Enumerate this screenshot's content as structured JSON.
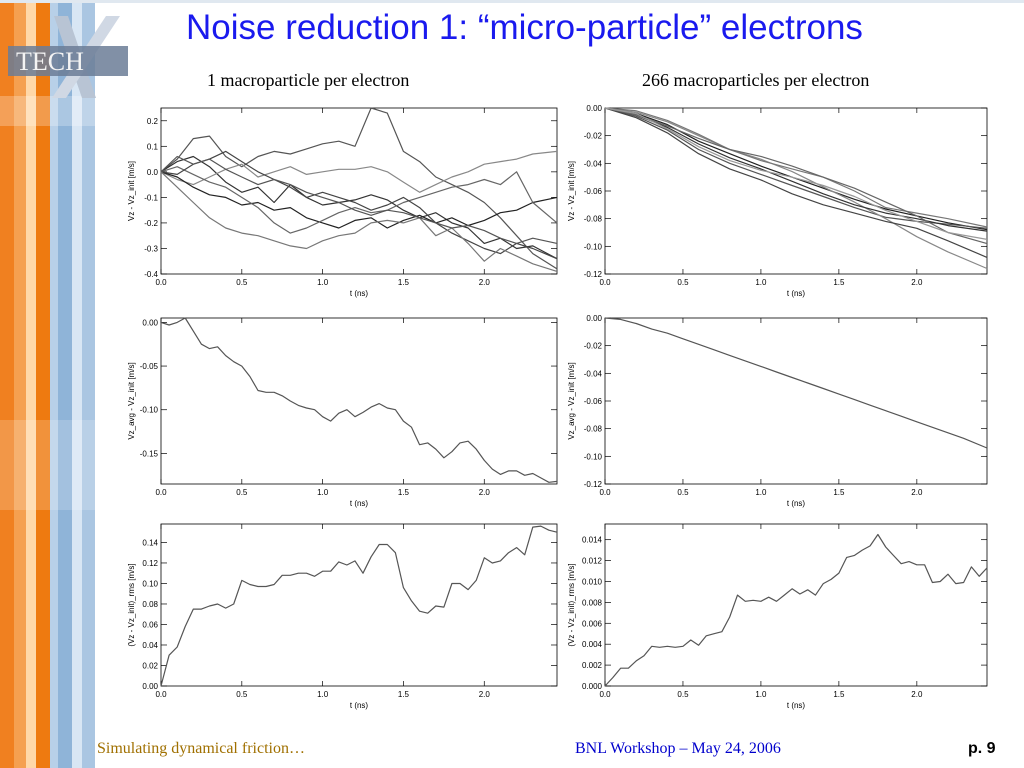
{
  "slide": {
    "title": "Noise reduction 1: “micro-particle” electrons",
    "column_left": "1 macroparticle per electron",
    "column_right": "266 macroparticles per electron",
    "footer_left": "Simulating dynamical friction…",
    "footer_center": "BNL Workshop – May 24, 2006",
    "page_number": "p. 9",
    "logo_text": "TECH",
    "colors": {
      "title": "#1a1aee",
      "footer_left": "#a07000",
      "footer_center": "#0000cc",
      "stripe_orange": "#ee7a10",
      "stripe_blue": "#8fb4d8"
    }
  },
  "chart_data": [
    {
      "type": "line",
      "ylabel": "Vz - Vz_init [m/s]",
      "xlabel": "t (ns)",
      "xlim": [
        0,
        2.45
      ],
      "ylim": [
        -0.4,
        0.25
      ],
      "xticks": [
        0.0,
        0.5,
        1.0,
        1.5,
        2.0
      ],
      "xtick_labels": [
        "0.0",
        "0.5",
        "1.0",
        "1.5",
        "2.0"
      ],
      "yticks": [
        0.2,
        0.1,
        0.0,
        -0.1,
        -0.2,
        -0.3,
        -0.4
      ],
      "ytick_labels": [
        "0.2",
        "0.1",
        "0.0",
        "-0.1",
        "-0.2",
        "-0.3",
        "-0.4"
      ],
      "x": [
        0.0,
        0.1,
        0.2,
        0.3,
        0.4,
        0.5,
        0.6,
        0.7,
        0.8,
        0.9,
        1.0,
        1.1,
        1.2,
        1.3,
        1.4,
        1.5,
        1.6,
        1.7,
        1.8,
        1.9,
        2.0,
        2.1,
        2.2,
        2.3,
        2.45
      ],
      "series": [
        {
          "color": "#555555",
          "values": [
            0.0,
            0.05,
            0.13,
            0.14,
            0.06,
            0.02,
            0.06,
            0.08,
            0.07,
            0.09,
            0.11,
            0.12,
            0.1,
            0.25,
            0.23,
            0.08,
            0.04,
            -0.02,
            -0.05,
            -0.08,
            -0.12,
            -0.18,
            -0.25,
            -0.32,
            -0.38
          ]
        },
        {
          "color": "#333333",
          "values": [
            0.0,
            0.04,
            0.06,
            0.02,
            -0.04,
            -0.08,
            -0.06,
            -0.12,
            -0.05,
            -0.1,
            -0.13,
            -0.12,
            -0.11,
            -0.09,
            -0.11,
            -0.15,
            -0.18,
            -0.16,
            -0.2,
            -0.22,
            -0.28,
            -0.26,
            -0.3,
            -0.29,
            -0.34
          ]
        },
        {
          "color": "#888888",
          "values": [
            0.0,
            -0.03,
            -0.05,
            -0.02,
            0.01,
            0.03,
            -0.02,
            0.0,
            0.02,
            -0.01,
            0.0,
            0.01,
            0.01,
            0.02,
            0.0,
            -0.04,
            -0.08,
            -0.05,
            -0.02,
            0.0,
            0.03,
            0.04,
            0.05,
            0.07,
            0.08
          ]
        },
        {
          "color": "#222222",
          "values": [
            0.0,
            -0.02,
            -0.06,
            -0.09,
            -0.1,
            -0.13,
            -0.12,
            -0.15,
            -0.14,
            -0.18,
            -0.2,
            -0.22,
            -0.19,
            -0.18,
            -0.22,
            -0.19,
            -0.17,
            -0.2,
            -0.18,
            -0.21,
            -0.19,
            -0.16,
            -0.15,
            -0.12,
            -0.1
          ]
        },
        {
          "color": "#666666",
          "values": [
            0.0,
            0.02,
            -0.01,
            -0.04,
            -0.06,
            -0.1,
            -0.14,
            -0.2,
            -0.24,
            -0.22,
            -0.19,
            -0.16,
            -0.14,
            -0.16,
            -0.15,
            -0.12,
            -0.1,
            -0.08,
            -0.06,
            -0.05,
            -0.03,
            -0.05,
            0.0,
            -0.12,
            -0.2
          ]
        },
        {
          "color": "#444444",
          "values": [
            0.0,
            -0.01,
            0.03,
            0.05,
            0.08,
            0.04,
            0.0,
            -0.03,
            -0.06,
            -0.1,
            -0.08,
            -0.1,
            -0.12,
            -0.15,
            -0.13,
            -0.1,
            -0.14,
            -0.2,
            -0.24,
            -0.27,
            -0.3,
            -0.32,
            -0.28,
            -0.3,
            -0.34
          ]
        },
        {
          "color": "#777777",
          "values": [
            0.0,
            -0.06,
            -0.12,
            -0.18,
            -0.22,
            -0.24,
            -0.25,
            -0.27,
            -0.29,
            -0.3,
            -0.27,
            -0.25,
            -0.24,
            -0.2,
            -0.19,
            -0.2,
            -0.18,
            -0.25,
            -0.22,
            -0.28,
            -0.35,
            -0.3,
            -0.33,
            -0.36,
            -0.39
          ]
        },
        {
          "color": "#555555",
          "values": [
            0.0,
            0.06,
            0.03,
            0.05,
            0.01,
            -0.02,
            -0.05,
            -0.03,
            -0.05,
            -0.08,
            -0.1,
            -0.12,
            -0.15,
            -0.17,
            -0.15,
            -0.16,
            -0.18,
            -0.2,
            -0.22,
            -0.21,
            -0.23,
            -0.26,
            -0.28,
            -0.26,
            -0.28
          ]
        }
      ]
    },
    {
      "type": "line",
      "ylabel": "Vz - Vz_init [m/s]",
      "xlabel": "t (ns)",
      "xlim": [
        0,
        2.45
      ],
      "ylim": [
        -0.12,
        0.0
      ],
      "xticks": [
        0.0,
        0.5,
        1.0,
        1.5,
        2.0
      ],
      "xtick_labels": [
        "0.0",
        "0.5",
        "1.0",
        "1.5",
        "2.0"
      ],
      "yticks": [
        0.0,
        -0.02,
        -0.04,
        -0.06,
        -0.08,
        -0.1,
        -0.12
      ],
      "ytick_labels": [
        "0.00",
        "-0.02",
        "-0.04",
        "-0.06",
        "-0.08",
        "-0.10",
        "-0.12"
      ],
      "x": [
        0.0,
        0.2,
        0.4,
        0.6,
        0.8,
        1.0,
        1.2,
        1.4,
        1.6,
        1.8,
        2.0,
        2.2,
        2.45
      ],
      "series": [
        {
          "color": "#222222",
          "values": [
            0.0,
            -0.004,
            -0.012,
            -0.024,
            -0.033,
            -0.042,
            -0.05,
            -0.058,
            -0.066,
            -0.073,
            -0.078,
            -0.083,
            -0.088
          ]
        },
        {
          "color": "#555555",
          "values": [
            0.0,
            -0.006,
            -0.016,
            -0.03,
            -0.04,
            -0.048,
            -0.056,
            -0.064,
            -0.072,
            -0.079,
            -0.082,
            -0.084,
            -0.087
          ]
        },
        {
          "color": "#888888",
          "values": [
            0.0,
            -0.003,
            -0.01,
            -0.02,
            -0.03,
            -0.037,
            -0.046,
            -0.057,
            -0.068,
            -0.08,
            -0.093,
            -0.104,
            -0.116
          ]
        },
        {
          "color": "#333333",
          "values": [
            0.0,
            -0.005,
            -0.014,
            -0.026,
            -0.036,
            -0.044,
            -0.053,
            -0.062,
            -0.07,
            -0.076,
            -0.08,
            -0.085,
            -0.089
          ]
        },
        {
          "color": "#777777",
          "values": [
            0.0,
            -0.002,
            -0.009,
            -0.019,
            -0.03,
            -0.038,
            -0.044,
            -0.05,
            -0.06,
            -0.072,
            -0.076,
            -0.08,
            -0.086
          ]
        },
        {
          "color": "#444444",
          "values": [
            0.0,
            -0.007,
            -0.018,
            -0.033,
            -0.044,
            -0.052,
            -0.062,
            -0.07,
            -0.076,
            -0.082,
            -0.087,
            -0.096,
            -0.108
          ]
        },
        {
          "color": "#666666",
          "values": [
            0.0,
            -0.005,
            -0.013,
            -0.022,
            -0.03,
            -0.035,
            -0.042,
            -0.05,
            -0.058,
            -0.068,
            -0.078,
            -0.09,
            -0.098
          ]
        },
        {
          "color": "#999999",
          "values": [
            0.0,
            -0.004,
            -0.015,
            -0.028,
            -0.038,
            -0.045,
            -0.05,
            -0.056,
            -0.064,
            -0.074,
            -0.082,
            -0.09,
            -0.095
          ]
        }
      ]
    },
    {
      "type": "line",
      "ylabel": "Vz_avg - Vz_init [m/s]",
      "xlabel": "t (ns)",
      "xlim": [
        0,
        2.45
      ],
      "ylim": [
        -0.185,
        0.005
      ],
      "xticks": [
        0.0,
        0.5,
        1.0,
        1.5,
        2.0
      ],
      "xtick_labels": [
        "0.0",
        "0.5",
        "1.0",
        "1.5",
        "2.0"
      ],
      "yticks": [
        0.0,
        -0.05,
        -0.1,
        -0.15
      ],
      "ytick_labels": [
        "0.00",
        "-0.05",
        "-0.10",
        "-0.15"
      ],
      "x": [
        0.0,
        0.05,
        0.1,
        0.15,
        0.2,
        0.25,
        0.3,
        0.35,
        0.4,
        0.45,
        0.5,
        0.55,
        0.6,
        0.65,
        0.7,
        0.75,
        0.8,
        0.85,
        0.9,
        0.95,
        1.0,
        1.05,
        1.1,
        1.15,
        1.2,
        1.25,
        1.3,
        1.35,
        1.4,
        1.45,
        1.5,
        1.55,
        1.6,
        1.65,
        1.7,
        1.75,
        1.8,
        1.85,
        1.9,
        1.95,
        2.0,
        2.05,
        2.1,
        2.15,
        2.2,
        2.25,
        2.3,
        2.35,
        2.4,
        2.45
      ],
      "series": [
        {
          "color": "#555555",
          "values": [
            0.0,
            -0.003,
            0.0,
            0.005,
            -0.01,
            -0.025,
            -0.03,
            -0.028,
            -0.038,
            -0.045,
            -0.05,
            -0.062,
            -0.078,
            -0.08,
            -0.08,
            -0.084,
            -0.09,
            -0.095,
            -0.098,
            -0.1,
            -0.108,
            -0.113,
            -0.104,
            -0.1,
            -0.108,
            -0.103,
            -0.097,
            -0.093,
            -0.098,
            -0.1,
            -0.113,
            -0.12,
            -0.14,
            -0.138,
            -0.145,
            -0.155,
            -0.148,
            -0.138,
            -0.136,
            -0.145,
            -0.158,
            -0.168,
            -0.174,
            -0.17,
            -0.17,
            -0.175,
            -0.173,
            -0.178,
            -0.183,
            -0.182
          ]
        }
      ]
    },
    {
      "type": "line",
      "ylabel": "Vz_avg - Vz_init [m/s]",
      "xlabel": "t (ns)",
      "xlim": [
        0,
        2.45
      ],
      "ylim": [
        -0.12,
        0.0
      ],
      "xticks": [
        0.0,
        0.5,
        1.0,
        1.5,
        2.0
      ],
      "xtick_labels": [
        "0.0",
        "0.5",
        "1.0",
        "1.5",
        "2.0"
      ],
      "yticks": [
        0.0,
        -0.02,
        -0.04,
        -0.06,
        -0.08,
        -0.1,
        -0.12
      ],
      "ytick_labels": [
        "0.00",
        "-0.02",
        "-0.04",
        "-0.06",
        "-0.08",
        "-0.10",
        "-0.12"
      ],
      "x": [
        0.0,
        0.1,
        0.2,
        0.3,
        0.4,
        0.5,
        0.6,
        0.7,
        0.8,
        0.9,
        1.0,
        1.1,
        1.2,
        1.3,
        1.4,
        1.5,
        1.6,
        1.7,
        1.8,
        1.9,
        2.0,
        2.1,
        2.2,
        2.3,
        2.45
      ],
      "series": [
        {
          "color": "#555555",
          "values": [
            0.0,
            -0.001,
            -0.004,
            -0.008,
            -0.011,
            -0.015,
            -0.019,
            -0.023,
            -0.027,
            -0.031,
            -0.035,
            -0.039,
            -0.043,
            -0.047,
            -0.051,
            -0.055,
            -0.059,
            -0.063,
            -0.067,
            -0.071,
            -0.075,
            -0.079,
            -0.083,
            -0.087,
            -0.094
          ]
        }
      ]
    },
    {
      "type": "line",
      "ylabel": "(Vz - Vz_init)_rms [m/s]",
      "xlabel": "t (ns)",
      "xlim": [
        0,
        2.45
      ],
      "ylim": [
        0,
        0.158
      ],
      "xticks": [
        0.0,
        0.5,
        1.0,
        1.5,
        2.0
      ],
      "xtick_labels": [
        "0.0",
        "0.5",
        "1.0",
        "1.5",
        "2.0"
      ],
      "yticks": [
        0.14,
        0.12,
        0.1,
        0.08,
        0.06,
        0.04,
        0.02,
        0.0
      ],
      "ytick_labels": [
        "0.14",
        "0.12",
        "0.10",
        "0.08",
        "0.06",
        "0.04",
        "0.02",
        "0.00"
      ],
      "x": [
        0.0,
        0.05,
        0.1,
        0.15,
        0.2,
        0.25,
        0.3,
        0.35,
        0.4,
        0.45,
        0.5,
        0.55,
        0.6,
        0.65,
        0.7,
        0.75,
        0.8,
        0.85,
        0.9,
        0.95,
        1.0,
        1.05,
        1.1,
        1.15,
        1.2,
        1.25,
        1.3,
        1.35,
        1.4,
        1.45,
        1.5,
        1.55,
        1.6,
        1.65,
        1.7,
        1.75,
        1.8,
        1.85,
        1.9,
        1.95,
        2.0,
        2.05,
        2.1,
        2.15,
        2.2,
        2.25,
        2.3,
        2.35,
        2.4,
        2.45
      ],
      "series": [
        {
          "color": "#555555",
          "values": [
            0.0,
            0.03,
            0.038,
            0.058,
            0.075,
            0.075,
            0.078,
            0.08,
            0.076,
            0.08,
            0.103,
            0.099,
            0.097,
            0.097,
            0.099,
            0.108,
            0.108,
            0.11,
            0.11,
            0.107,
            0.112,
            0.112,
            0.121,
            0.118,
            0.122,
            0.11,
            0.126,
            0.138,
            0.138,
            0.13,
            0.096,
            0.083,
            0.073,
            0.071,
            0.078,
            0.077,
            0.1,
            0.1,
            0.094,
            0.103,
            0.125,
            0.12,
            0.122,
            0.13,
            0.135,
            0.128,
            0.155,
            0.156,
            0.152,
            0.15
          ]
        }
      ]
    },
    {
      "type": "line",
      "ylabel": "(Vz - Vz_init)_rms [m/s]",
      "xlabel": "t (ns)",
      "xlim": [
        0,
        2.45
      ],
      "ylim": [
        0,
        0.0155
      ],
      "xticks": [
        0.0,
        0.5,
        1.0,
        1.5,
        2.0
      ],
      "xtick_labels": [
        "0.0",
        "0.5",
        "1.0",
        "1.5",
        "2.0"
      ],
      "yticks": [
        0.014,
        0.012,
        0.01,
        0.008,
        0.006,
        0.004,
        0.002,
        0.0
      ],
      "ytick_labels": [
        "0.014",
        "0.012",
        "0.010",
        "0.008",
        "0.006",
        "0.004",
        "0.002",
        "0.000"
      ],
      "x": [
        0.0,
        0.05,
        0.1,
        0.15,
        0.2,
        0.25,
        0.3,
        0.35,
        0.4,
        0.45,
        0.5,
        0.55,
        0.6,
        0.65,
        0.7,
        0.75,
        0.8,
        0.85,
        0.9,
        0.95,
        1.0,
        1.05,
        1.1,
        1.15,
        1.2,
        1.25,
        1.3,
        1.35,
        1.4,
        1.45,
        1.5,
        1.55,
        1.6,
        1.65,
        1.7,
        1.75,
        1.8,
        1.85,
        1.9,
        1.95,
        2.0,
        2.05,
        2.1,
        2.15,
        2.2,
        2.25,
        2.3,
        2.35,
        2.4,
        2.45
      ],
      "series": [
        {
          "color": "#555555",
          "values": [
            0.0,
            0.0008,
            0.0017,
            0.0017,
            0.0024,
            0.0029,
            0.0038,
            0.0037,
            0.0038,
            0.0037,
            0.0038,
            0.0044,
            0.0039,
            0.0048,
            0.005,
            0.0052,
            0.0066,
            0.0087,
            0.0081,
            0.0082,
            0.0081,
            0.0085,
            0.0081,
            0.0087,
            0.0093,
            0.0088,
            0.0092,
            0.0087,
            0.0098,
            0.0102,
            0.0108,
            0.0123,
            0.0125,
            0.013,
            0.0134,
            0.0145,
            0.0133,
            0.0125,
            0.0117,
            0.0119,
            0.0116,
            0.0116,
            0.0099,
            0.01,
            0.0107,
            0.0098,
            0.0099,
            0.0114,
            0.0105,
            0.0113
          ]
        }
      ]
    }
  ]
}
